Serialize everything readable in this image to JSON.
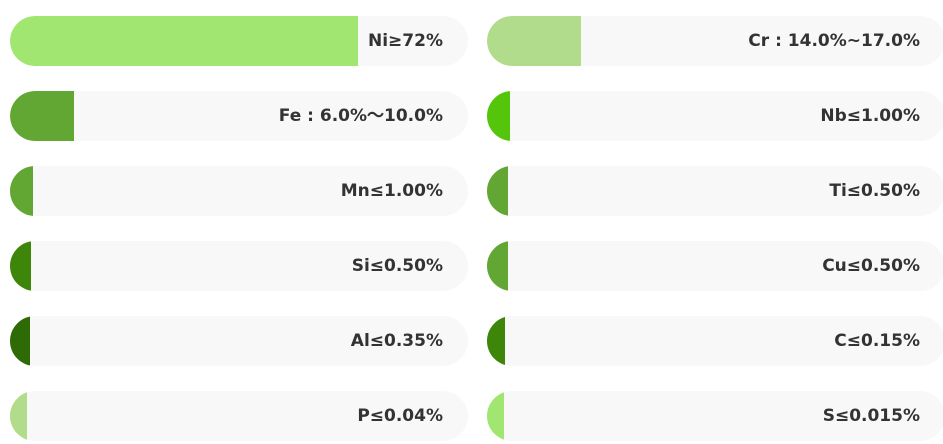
{
  "elements": [
    {
      "label": "Ni≥72%",
      "percent": 76,
      "color": "#a2e672"
    },
    {
      "label": "Cr : 14.0%~17.0%",
      "percent": 20.5,
      "color": "#b0dc8c"
    },
    {
      "label": "Fe : 6.0%～10.0%",
      "percent": 14,
      "color": "#62a633"
    },
    {
      "label": "Nb≤1.00%",
      "percent": 5,
      "color": "#55c50b"
    },
    {
      "label": "Mn≤1.00%",
      "percent": 5,
      "color": "#62a633"
    },
    {
      "label": "Ti≤0.50%",
      "percent": 4.5,
      "color": "#62a633"
    },
    {
      "label": "Si≤0.50%",
      "percent": 4.5,
      "color": "#3e860a"
    },
    {
      "label": "Cu≤0.50%",
      "percent": 4.5,
      "color": "#62a633"
    },
    {
      "label": "Al≤0.35%",
      "percent": 4.3,
      "color": "#2e6a05"
    },
    {
      "label": "C≤0.15%",
      "percent": 4,
      "color": "#3e860a"
    },
    {
      "label": "P≤0.04%",
      "percent": 3.7,
      "color": "#b0dc8c"
    },
    {
      "label": "S≤0.015%",
      "percent": 3.7,
      "color": "#a2e672"
    }
  ]
}
